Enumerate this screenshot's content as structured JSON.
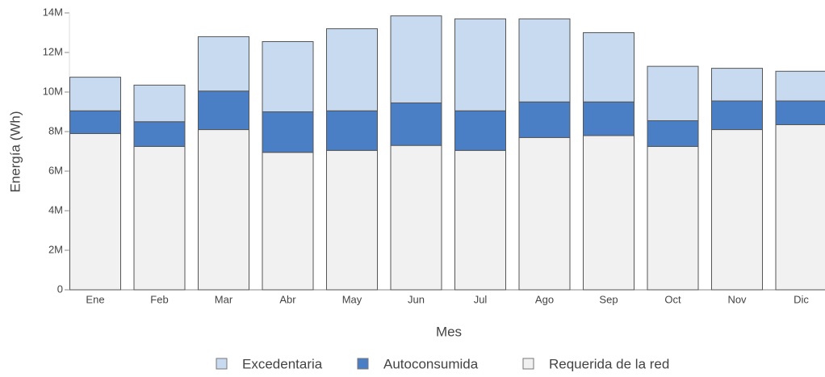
{
  "chart_data": {
    "type": "stacked_bar",
    "x_label": "Mes",
    "y_label": "Energía (Wh)",
    "categories": [
      "Ene",
      "Feb",
      "Mar",
      "Abr",
      "May",
      "Jun",
      "Jul",
      "Ago",
      "Sep",
      "Oct",
      "Nov",
      "Dic"
    ],
    "series": [
      {
        "name": "Excedentaria",
        "color": "#c8daf0",
        "values": [
          1700000,
          1850000,
          2750000,
          3550000,
          4150000,
          4400000,
          4650000,
          4200000,
          3500000,
          2750000,
          1650000,
          1500000
        ]
      },
      {
        "name": "Autoconsumida",
        "color": "#4a7fc6",
        "values": [
          1150000,
          1250000,
          1950000,
          2050000,
          2000000,
          2150000,
          2000000,
          1800000,
          1700000,
          1300000,
          1450000,
          1200000
        ]
      },
      {
        "name": "Requerida de la red",
        "color": "#f1f1f1",
        "values": [
          7900000,
          7250000,
          8100000,
          6950000,
          7050000,
          7300000,
          7050000,
          7700000,
          7800000,
          7250000,
          8100000,
          8350000
        ]
      }
    ],
    "stack_order": "reverse",
    "ylim": [
      0,
      14000000
    ],
    "yticks": [
      0,
      {
        "value": 2000000,
        "label": "2M"
      },
      {
        "value": 4000000,
        "label": "4M"
      },
      {
        "value": 6000000,
        "label": "6M"
      },
      {
        "value": 8000000,
        "label": "8M"
      },
      {
        "value": 10000000,
        "label": "10M"
      },
      {
        "value": 12000000,
        "label": "12M"
      },
      {
        "value": 14000000,
        "label": "14M"
      }
    ],
    "legend": "bottom",
    "grid": false
  }
}
